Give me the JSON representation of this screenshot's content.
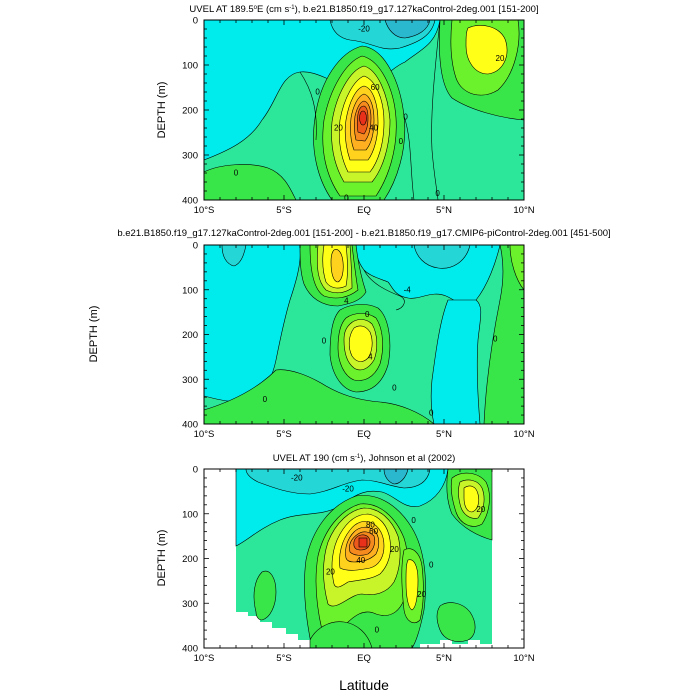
{
  "figure": {
    "super_ylabel": "DEPTH (m)",
    "xlabel": "Latitude",
    "colors": {
      "c_n30": "#2ab8ce",
      "c_n20": "#24d6d6",
      "c_n10": "#00ecec",
      "c_0": "#2ce79a",
      "c_10": "#39e64a",
      "c_20": "#6cf22c",
      "c_30": "#c8f52a",
      "c_40": "#ffff18",
      "c_50": "#ffd21e",
      "c_60": "#ffb020",
      "c_70": "#f58a1e",
      "c_80": "#ee5a1c",
      "c_90": "#e8301a",
      "line": "#000000"
    }
  },
  "chart_data": [
    {
      "type": "contour",
      "title_pre": "UVEL AT 189.5",
      "title_deg": "o",
      "title_mid": "E (cm s",
      "title_exp": "-1",
      "title_post": "), b.e21.B1850.f19_g17.127kaControl-2deg.001 [151-200]",
      "ylabel": "DEPTH (m)",
      "x_ticks": [
        "10°S",
        "5°S",
        "EQ",
        "5°N",
        "10°N"
      ],
      "y_ticks": [
        "0",
        "100",
        "200",
        "300",
        "400"
      ],
      "xlim": [
        -10,
        10
      ],
      "ylim": [
        400,
        0
      ],
      "contour_labels": [
        {
          "text": "-20",
          "lat": 0.0,
          "depth": 20
        },
        {
          "text": "20",
          "lat": 8.5,
          "depth": 85
        },
        {
          "text": "60",
          "lat": 0.7,
          "depth": 150
        },
        {
          "text": "40",
          "lat": 0.6,
          "depth": 240
        },
        {
          "text": "20",
          "lat": -1.6,
          "depth": 240
        },
        {
          "text": "0",
          "lat": -2.9,
          "depth": 160
        },
        {
          "text": "0",
          "lat": 2.6,
          "depth": 215
        },
        {
          "text": "0",
          "lat": 2.3,
          "depth": 270
        },
        {
          "text": "0",
          "lat": -8.0,
          "depth": 340
        },
        {
          "text": "0",
          "lat": 4.6,
          "depth": 385
        },
        {
          "text": "0",
          "lat": -1.1,
          "depth": 400
        }
      ]
    },
    {
      "type": "contour",
      "title_pre": "b.e21.B1850.f19_g17.127kaControl-2deg.001 [151-200] - b.e21.B1850.f19_g17.CMIP6-piControl-2deg.001 [451-500]",
      "x_ticks": [
        "10°S",
        "5°S",
        "EQ",
        "5°N",
        "10°N"
      ],
      "y_ticks": [
        "0",
        "100",
        "200",
        "300",
        "400"
      ],
      "xlim": [
        -10,
        10
      ],
      "ylim": [
        400,
        0
      ],
      "contour_labels": [
        {
          "text": "4",
          "lat": -1.1,
          "depth": 125
        },
        {
          "text": "-4",
          "lat": 2.7,
          "depth": 100
        },
        {
          "text": "0",
          "lat": 0.2,
          "depth": 155
        },
        {
          "text": "4",
          "lat": 0.4,
          "depth": 250
        },
        {
          "text": "0",
          "lat": -2.5,
          "depth": 215
        },
        {
          "text": "0",
          "lat": 8.2,
          "depth": 210
        },
        {
          "text": "0",
          "lat": 1.9,
          "depth": 320
        },
        {
          "text": "0",
          "lat": -6.2,
          "depth": 345
        },
        {
          "text": "0",
          "lat": 4.2,
          "depth": 375
        }
      ]
    },
    {
      "type": "contour",
      "title_pre": "UVEL AT 190 (cm s",
      "title_exp": "-1",
      "title_post": "), Johnson et al (2002)",
      "ylabel": "DEPTH (m)",
      "x_ticks": [
        "10°S",
        "5°S",
        "EQ",
        "5°N",
        "10°N"
      ],
      "y_ticks": [
        "0",
        "100",
        "200",
        "300",
        "400"
      ],
      "xlim": [
        -10,
        10
      ],
      "ylim": [
        400,
        0
      ],
      "data_lat_range": [
        -8,
        8
      ],
      "contour_labels": [
        {
          "text": "-20",
          "lat": -4.2,
          "depth": 20
        },
        {
          "text": "-20",
          "lat": -1.0,
          "depth": 45
        },
        {
          "text": "20",
          "lat": 7.3,
          "depth": 90
        },
        {
          "text": "0",
          "lat": 3.1,
          "depth": 115
        },
        {
          "text": "80",
          "lat": 0.4,
          "depth": 125
        },
        {
          "text": "60",
          "lat": 0.6,
          "depth": 140
        },
        {
          "text": "20",
          "lat": 1.9,
          "depth": 180
        },
        {
          "text": "40",
          "lat": -0.2,
          "depth": 205
        },
        {
          "text": "20",
          "lat": -2.1,
          "depth": 230
        },
        {
          "text": "0",
          "lat": 4.2,
          "depth": 215
        },
        {
          "text": "20",
          "lat": 3.6,
          "depth": 280
        },
        {
          "text": "0",
          "lat": 0.8,
          "depth": 360
        }
      ]
    }
  ]
}
